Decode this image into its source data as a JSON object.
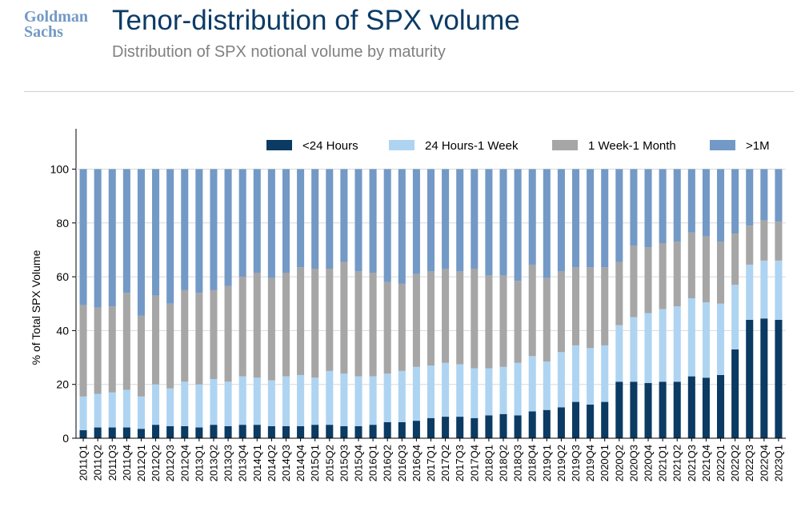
{
  "header": {
    "logo_line1": "Goldman",
    "logo_line2": "Sachs",
    "title": "Tenor-distribution of SPX volume",
    "subtitle": "Distribution of SPX notional volume by maturity"
  },
  "colors": {
    "lt24h": "#0b3a63",
    "h24_1w": "#aed4f2",
    "w1_1m": "#a6a6a6",
    "gt1m": "#7399c6",
    "title": "#0d3b66",
    "subtitle": "#808080",
    "logo": "#7399c6"
  },
  "chart_data": {
    "type": "bar",
    "stacked": true,
    "title": "Tenor-distribution of SPX volume",
    "ylabel": "% of Total SPX Volume",
    "xlabel": "",
    "ylim": [
      0,
      115
    ],
    "yticks": [
      0,
      20,
      40,
      60,
      80,
      100
    ],
    "grid": true,
    "legend_position": "top-right",
    "categories": [
      "2011Q1",
      "2011Q2",
      "2011Q3",
      "2011Q4",
      "2012Q1",
      "2012Q2",
      "2012Q3",
      "2012Q4",
      "2013Q1",
      "2013Q2",
      "2013Q3",
      "2013Q4",
      "2014Q1",
      "2014Q2",
      "2014Q3",
      "2014Q4",
      "2015Q1",
      "2015Q2",
      "2015Q3",
      "2015Q4",
      "2016Q1",
      "2016Q2",
      "2016Q3",
      "2016Q4",
      "2017Q1",
      "2017Q2",
      "2017Q3",
      "2017Q4",
      "2018Q1",
      "2018Q2",
      "2018Q3",
      "2018Q4",
      "2019Q1",
      "2019Q2",
      "2019Q3",
      "2019Q4",
      "2020Q1",
      "2020Q2",
      "2020Q3",
      "2020Q4",
      "2021Q1",
      "2021Q2",
      "2021Q3",
      "2021Q4",
      "2022Q1",
      "2022Q2",
      "2022Q3",
      "2022Q4",
      "2023Q1"
    ],
    "series": [
      {
        "name": "<24 Hours",
        "values": [
          3,
          4,
          4,
          4,
          3.5,
          5,
          4.5,
          4.5,
          4,
          5,
          4.5,
          5,
          5,
          4.5,
          4.5,
          4.5,
          5,
          5,
          4.5,
          4.5,
          5,
          6,
          6,
          6.5,
          7.5,
          8,
          8,
          7.5,
          8.5,
          9,
          8.5,
          10,
          10.5,
          11.5,
          13.5,
          12.5,
          13.5,
          21,
          21,
          20.5,
          21,
          21,
          23,
          22.5,
          23.5,
          33,
          44,
          44.5,
          44
        ]
      },
      {
        "name": "24 Hours-1 Week",
        "values": [
          12.5,
          12.5,
          13,
          14,
          12,
          15,
          14,
          16.5,
          16,
          17,
          16.5,
          18,
          17.5,
          17,
          18.5,
          19,
          17.5,
          20,
          19.5,
          18.5,
          18,
          18,
          19,
          20,
          19.5,
          20,
          19.5,
          18.5,
          17.5,
          17.5,
          19.5,
          20.5,
          18,
          20.5,
          21,
          21,
          21,
          21,
          24,
          26,
          27,
          28,
          29,
          28,
          26.5,
          24,
          20.5,
          21.5,
          22
        ]
      },
      {
        "name": "1 Week-1 Month",
        "values": [
          34,
          32,
          32,
          36,
          30,
          33,
          31.5,
          34,
          34,
          33,
          35.5,
          37,
          39,
          38,
          38.5,
          40,
          40.5,
          38,
          41.5,
          39,
          38.5,
          34,
          32.5,
          34.5,
          35,
          35,
          34.5,
          37,
          34.5,
          34,
          30.5,
          34,
          31,
          30,
          29,
          30,
          29,
          23.5,
          26.5,
          24.5,
          24.5,
          24,
          24.5,
          24.5,
          23,
          19,
          14.5,
          15,
          14.5
        ]
      },
      {
        "name": ">1M",
        "values": [
          50.5,
          51.5,
          51,
          46,
          54.5,
          47,
          50,
          45,
          46,
          45,
          43.5,
          40,
          38.5,
          40.5,
          38.5,
          36.5,
          37,
          37,
          34.5,
          38,
          38.5,
          42,
          42.5,
          39,
          38,
          37,
          38,
          37,
          39.5,
          39.5,
          41.5,
          35.5,
          40.5,
          38,
          36.5,
          36.5,
          36.5,
          34.5,
          28.5,
          29,
          27.5,
          27,
          23.5,
          25,
          27,
          24,
          21,
          19,
          19.5
        ]
      }
    ]
  }
}
